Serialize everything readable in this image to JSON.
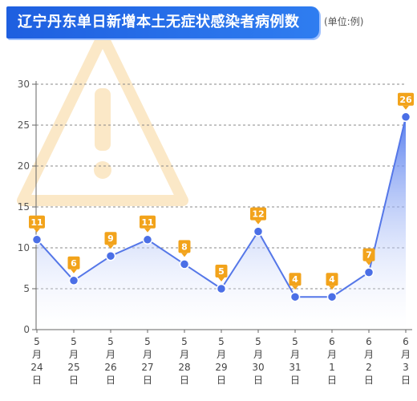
{
  "header": {
    "title": "辽宁丹东单日新增本土无症状感染者病例数",
    "unit_note": "(单位:例)"
  },
  "colors": {
    "title_bg": "#1e5fe0",
    "line": "#5577e8",
    "point": "#4b6fe6",
    "label_bg": "#f2a31b",
    "area_top": "#4f78ee",
    "area_bottom": "#ffffff",
    "watermark": "#fbe6c2"
  },
  "chart_data": {
    "type": "area",
    "title": "辽宁丹东单日新增本土无症状感染者病例数",
    "unit": "(单位:例)",
    "categories": [
      [
        "5",
        "月",
        "24",
        "日"
      ],
      [
        "5",
        "月",
        "25",
        "日"
      ],
      [
        "5",
        "月",
        "26",
        "日"
      ],
      [
        "5",
        "月",
        "27",
        "日"
      ],
      [
        "5",
        "月",
        "28",
        "日"
      ],
      [
        "5",
        "月",
        "29",
        "日"
      ],
      [
        "5",
        "月",
        "30",
        "日"
      ],
      [
        "5",
        "月",
        "31",
        "日"
      ],
      [
        "6",
        "月",
        "1",
        "日"
      ],
      [
        "6",
        "月",
        "2",
        "日"
      ],
      [
        "6",
        "月",
        "3",
        "日"
      ]
    ],
    "values": [
      11,
      6,
      9,
      11,
      8,
      5,
      12,
      4,
      4,
      7,
      26
    ],
    "ylim": [
      0,
      30
    ],
    "yticks": [
      "0",
      "5",
      "10",
      "15",
      "20",
      "25",
      "30"
    ],
    "grid": true,
    "data_labels": true,
    "watermark_icon": "warning-triangle-icon"
  }
}
